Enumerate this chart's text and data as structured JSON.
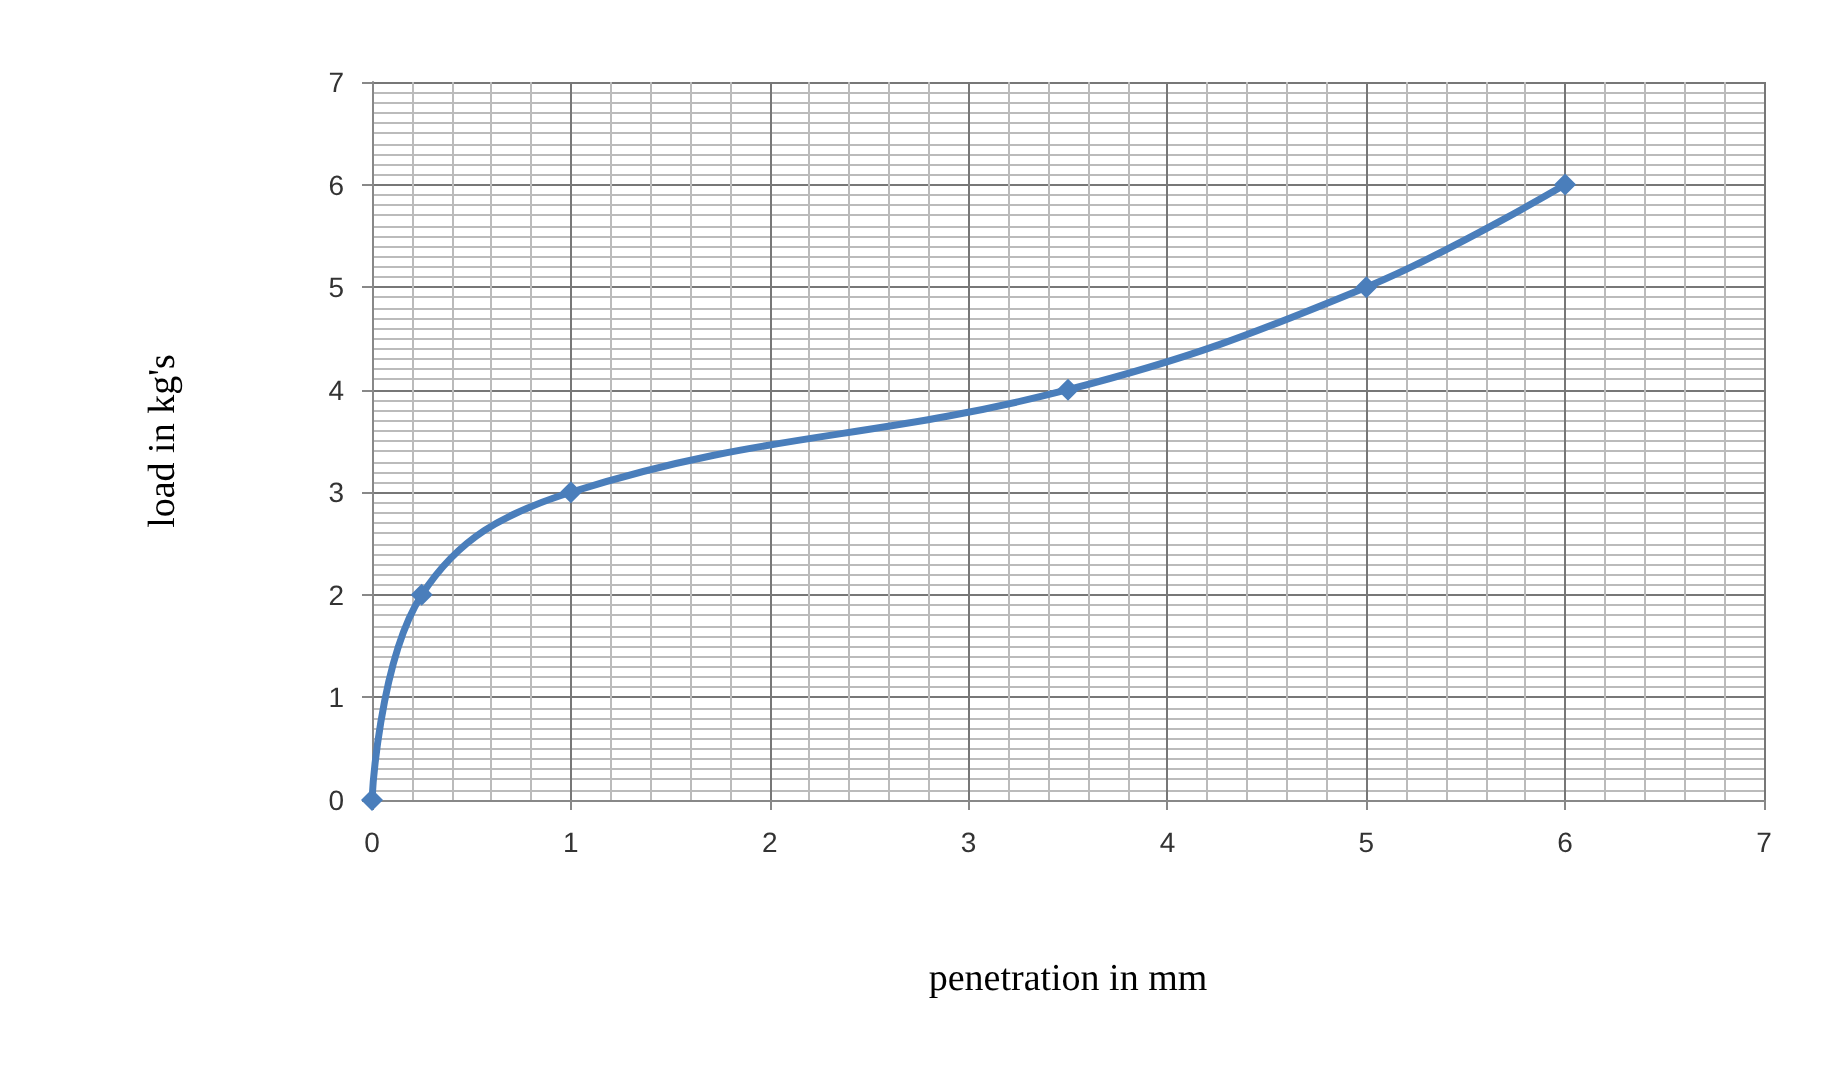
{
  "chart_data": {
    "type": "line",
    "xlabel": "penetration in mm",
    "ylabel": "load in kg's",
    "x": [
      0,
      0.25,
      1,
      3.5,
      5,
      6
    ],
    "series": [
      {
        "color": "#4a7ebb",
        "values": [
          0,
          2,
          3,
          4,
          5,
          6
        ]
      }
    ],
    "xlim": [
      0,
      7
    ],
    "xticks": [
      0,
      1,
      2,
      3,
      4,
      5,
      6,
      7
    ],
    "ylim": [
      0,
      7
    ],
    "yticks": [
      0,
      1,
      2,
      3,
      4,
      5,
      6,
      7
    ],
    "grid": true,
    "marker": "diamond",
    "line_style": "solid"
  }
}
